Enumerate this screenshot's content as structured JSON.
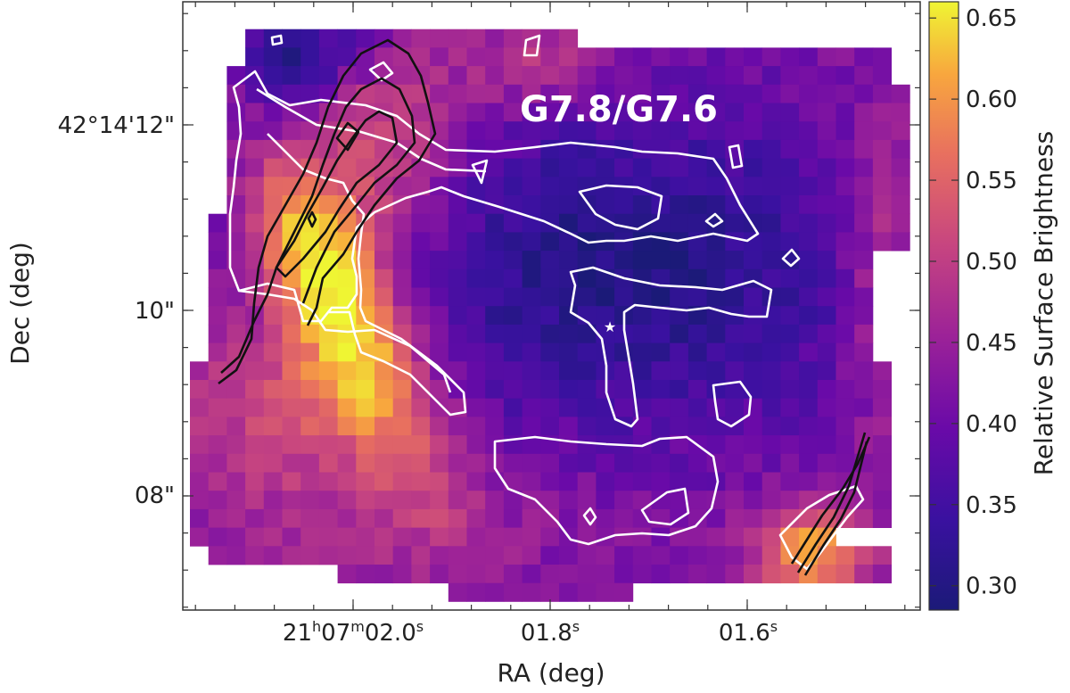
{
  "chart_data": {
    "type": "heatmap",
    "panel_label": "G7.8/G7.6",
    "xlabel": "RA (deg)",
    "ylabel": "Dec (deg)",
    "colorbar": {
      "label": "Relative Surface Brightness",
      "range": [
        0.285,
        0.66
      ],
      "ticks": [
        "0.30",
        "0.35",
        "0.40",
        "0.45",
        "0.50",
        "0.55",
        "0.60",
        "0.65"
      ],
      "tick_values": [
        0.3,
        0.35,
        0.4,
        0.45,
        0.5,
        0.55,
        0.6,
        0.65
      ],
      "colormap": "plasma"
    },
    "x_ticks": [
      {
        "base": "21",
        "h": "h",
        "m_val": "07",
        "m": "m",
        "s_val": "02.0",
        "s": "s",
        "value": 2.0
      },
      {
        "base": "",
        "h": "",
        "m_val": "",
        "m": "",
        "s_val": "01.8",
        "s": "s",
        "value": 1.8
      },
      {
        "base": "",
        "h": "",
        "m_val": "",
        "m": "",
        "s_val": "01.6",
        "s": "s",
        "value": 1.6
      }
    ],
    "y_ticks": [
      {
        "label": "42°14'12\"",
        "value": 12
      },
      {
        "label": "10\"",
        "value": 10
      },
      {
        "label": "08\"",
        "value": 8
      }
    ],
    "marker": {
      "symbol": "★",
      "color": "#ffffff"
    },
    "contour_colors": {
      "white": "#ffffff",
      "black": "#111111"
    }
  }
}
